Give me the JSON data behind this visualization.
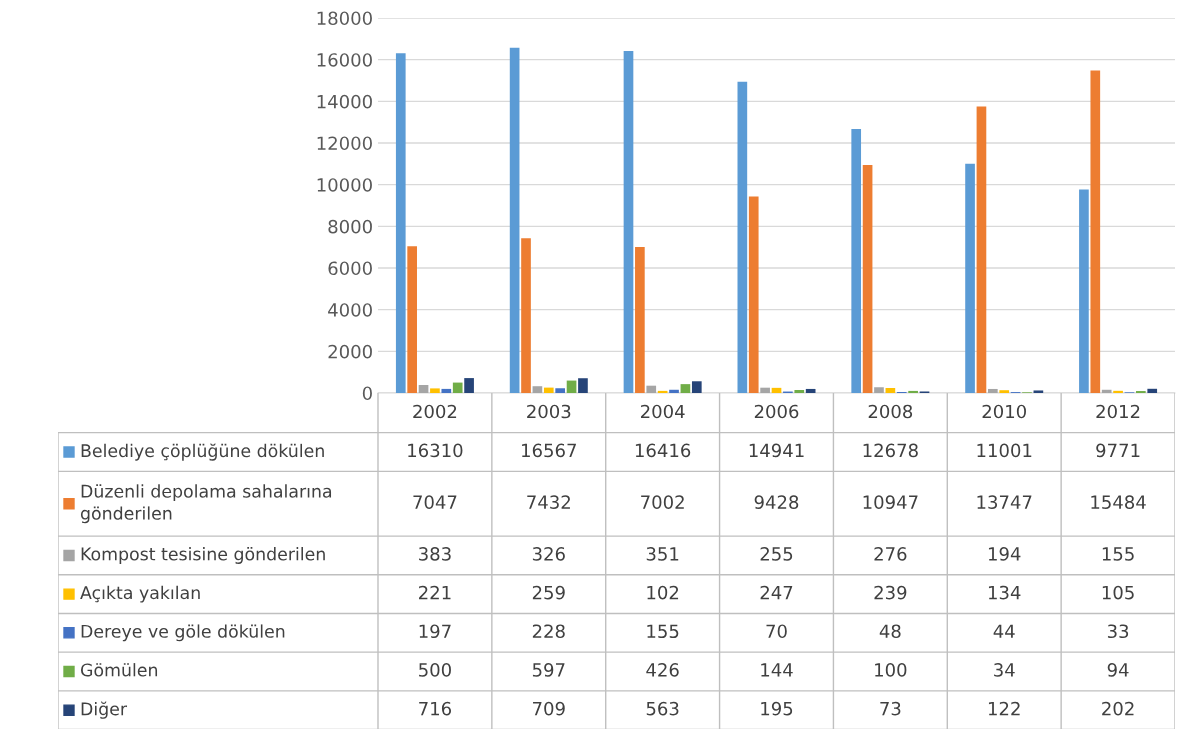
{
  "chart_data": {
    "type": "bar",
    "categories": [
      "2002",
      "2003",
      "2004",
      "2006",
      "2008",
      "2010",
      "2012"
    ],
    "series": [
      {
        "name": "Belediye çöplüğüne dökülen",
        "color": "#5b9bd5",
        "values": [
          16310,
          16567,
          16416,
          14941,
          12678,
          11001,
          9771
        ]
      },
      {
        "name": "Düzenli depolama sahalarına gönderilen",
        "color": "#ed7d31",
        "values": [
          7047,
          7432,
          7002,
          9428,
          10947,
          13747,
          15484
        ]
      },
      {
        "name": "Kompost tesisine gönderilen",
        "color": "#a5a5a5",
        "values": [
          383,
          326,
          351,
          255,
          276,
          194,
          155
        ]
      },
      {
        "name": "Açıkta yakılan",
        "color": "#ffc000",
        "values": [
          221,
          259,
          102,
          247,
          239,
          134,
          105
        ]
      },
      {
        "name": "Dereye ve göle dökülen",
        "color": "#4472c4",
        "values": [
          197,
          228,
          155,
          70,
          48,
          44,
          33
        ]
      },
      {
        "name": "Gömülen",
        "color": "#70ad47",
        "values": [
          500,
          597,
          426,
          144,
          100,
          34,
          94
        ]
      },
      {
        "name": "Diğer",
        "color": "#264478",
        "values": [
          716,
          709,
          563,
          195,
          73,
          122,
          202
        ]
      }
    ],
    "ylim": [
      0,
      18000
    ],
    "yticks": [
      0,
      2000,
      4000,
      6000,
      8000,
      10000,
      12000,
      14000,
      16000,
      18000
    ],
    "grid": "y",
    "data_labels": true,
    "legend": "bottom"
  }
}
